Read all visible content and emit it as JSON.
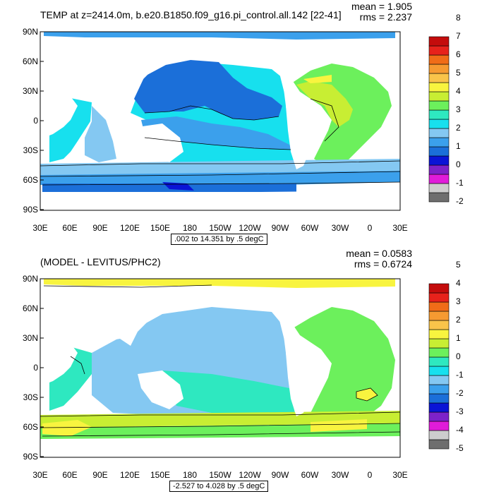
{
  "top": {
    "title": "TEMP at z=2414.0m, b.e20.B1850.f09_g16.pi_control.all.142 [22-41]",
    "mean_label": "mean = 1.905",
    "rms_label": "rms = 2.237",
    "range_note": ".002 to 14.351 by .5 degC",
    "lat_labels": [
      "90N",
      "60N",
      "30N",
      "0",
      "30S",
      "60S",
      "90S"
    ],
    "lon_labels": [
      "30E",
      "60E",
      "90E",
      "120E",
      "150E",
      "180",
      "150W",
      "120W",
      "90W",
      "60W",
      "30W",
      "0",
      "30E"
    ],
    "colorbar": {
      "colors": [
        "#6e6e6e",
        "#cdcdcd",
        "#e01cd9",
        "#7d22c9",
        "#0a14d6",
        "#1b6fd9",
        "#3ba0ec",
        "#84c8f2",
        "#17e0ee",
        "#2ee8c0",
        "#6cf05c",
        "#c8ee33",
        "#f8f43f",
        "#f9c44a",
        "#f69a31",
        "#f06c18",
        "#e7221b",
        "#c40c0c"
      ],
      "labels": [
        "-2",
        "-1",
        "0",
        "1",
        "2",
        "3",
        "4",
        "5",
        "6",
        "7",
        "8"
      ]
    }
  },
  "bottom": {
    "title": "(MODEL - LEVITUS/PHC2)",
    "mean_label": "mean = 0.0583",
    "rms_label": "rms = 0.6724",
    "range_note": "-2.527 to 4.028 by .5 degC",
    "lat_labels": [
      "90N",
      "60N",
      "30N",
      "0",
      "30S",
      "60S",
      "90S"
    ],
    "lon_labels": [
      "30E",
      "60E",
      "90E",
      "120E",
      "150E",
      "180",
      "150W",
      "120W",
      "90W",
      "60W",
      "30W",
      "0",
      "30E"
    ],
    "colorbar": {
      "colors": [
        "#6e6e6e",
        "#cdcdcd",
        "#e01cd9",
        "#7d22c9",
        "#0a14d6",
        "#1b6fd9",
        "#3ba0ec",
        "#84c8f2",
        "#17e0ee",
        "#2ee8c0",
        "#6cf05c",
        "#c8ee33",
        "#f8f43f",
        "#f9c44a",
        "#f69a31",
        "#f06c18",
        "#e7221b",
        "#c40c0c"
      ],
      "labels": [
        "-5",
        "-4",
        "-3",
        "-2",
        "-1",
        "0",
        "1",
        "2",
        "3",
        "4",
        "5"
      ]
    }
  }
}
